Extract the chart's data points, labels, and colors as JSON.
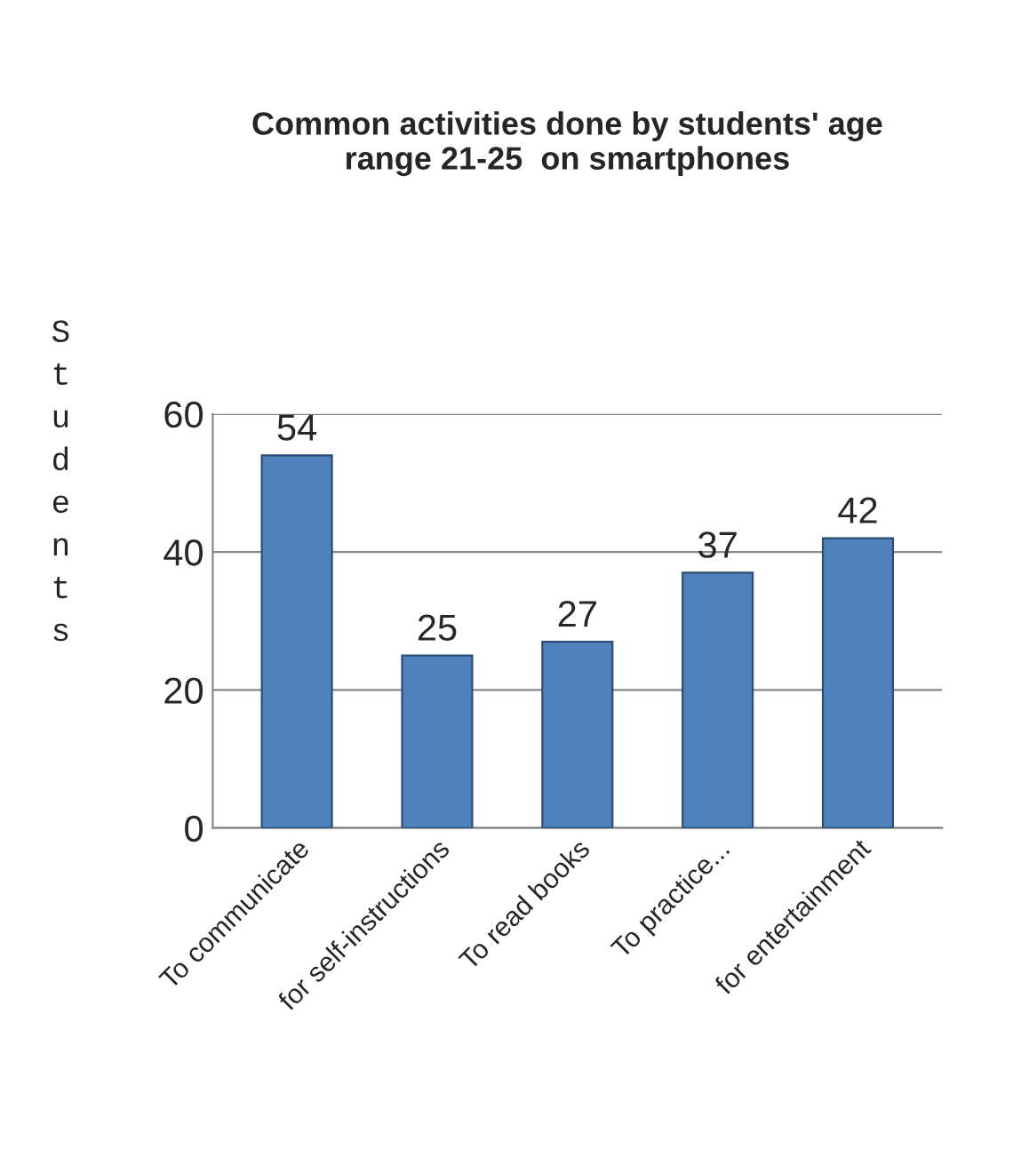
{
  "chart_data": {
    "type": "bar",
    "title": "Common activities done by students' age\nrange 21-25  on smartphones",
    "ylabel": "Students",
    "categories": [
      "To communicate",
      "for self-instructions",
      "To read books",
      "To practice...",
      "for entertainment"
    ],
    "values": [
      54,
      25,
      27,
      37,
      42
    ],
    "color": "#4f81bd",
    "ylim": [
      0,
      60
    ],
    "yticks": [
      0,
      20,
      40,
      60
    ],
    "grid": "y",
    "data_labels": true
  }
}
